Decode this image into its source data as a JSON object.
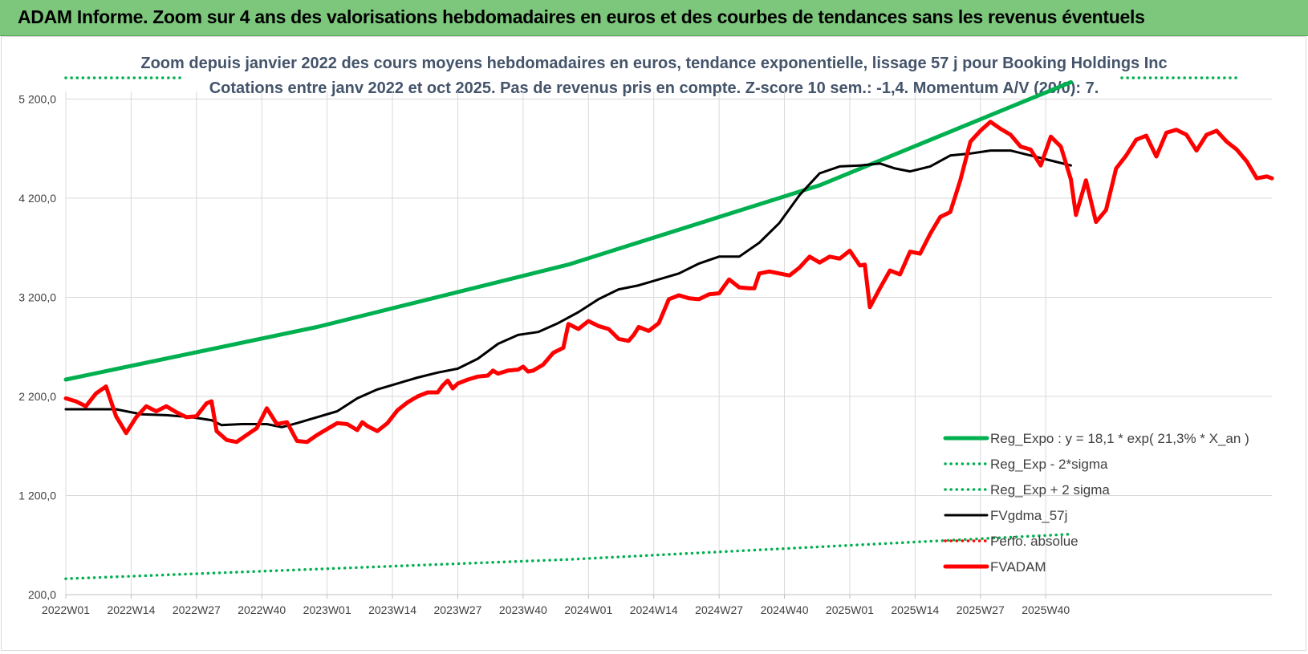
{
  "header": {
    "title": "ADAM Informe. Zoom sur 4 ans des valorisations hebdomadaires en euros et des courbes de tendances sans les revenus éventuels"
  },
  "colors": {
    "banner": "#7dc77d",
    "reg_expo": "#00b050",
    "fvgdma": "#000000",
    "fvadam": "#ff0000",
    "perfo": "#ff0000"
  },
  "chart_data": {
    "type": "line",
    "title_line1": "Zoom depuis janvier 2022 des cours moyens hebdomadaires en euros, tendance exponentielle, lissage 57 j pour Booking Holdings Inc",
    "title_line2": "Cotations entre janv 2022 et oct 2025. Pas de revenus pris en compte. Z-score 10 sem.: -1,4.  Momentum A/V (20/0): 7.",
    "ylim": [
      200,
      5600
    ],
    "y_ticks": [
      200,
      1200,
      2200,
      3200,
      4200,
      5200
    ],
    "y_tick_labels": [
      "200,0",
      "1 200,0",
      "2 200,0",
      "3 200,0",
      "4 200,0",
      "5 200,0"
    ],
    "x_tick_labels": [
      "2022W01",
      "2022W14",
      "2022W27",
      "2022W40",
      "2023W01",
      "2023W14",
      "2023W27",
      "2023W40",
      "2024W01",
      "2024W14",
      "2024W27",
      "2024W40",
      "2025W01",
      "2025W14",
      "2025W27",
      "2025W40"
    ],
    "x_tick_index": [
      0,
      13,
      26,
      39,
      52,
      65,
      78,
      91,
      104,
      117,
      130,
      143,
      156,
      169,
      182,
      195
    ],
    "grid": true,
    "legend_position": "bottom-right",
    "series": [
      {
        "name": "Reg_Expo : y = 18,1 * exp( 21,3% *  X_an )",
        "style": "solid-thick",
        "color": "#00b050",
        "points": [
          [
            0,
            2370
          ],
          [
            50,
            2900
          ],
          [
            100,
            3530
          ],
          [
            150,
            4330
          ],
          [
            200,
            5370
          ]
        ]
      },
      {
        "name": "Reg_Exp - 2*sigma",
        "style": "dotted",
        "color": "#00b050",
        "points": [
          [
            0,
            360
          ],
          [
            100,
            555
          ],
          [
            200,
            810
          ]
        ]
      },
      {
        "name": "Reg_Exp + 2 sigma",
        "style": "dotted",
        "color": "#00b050",
        "points": [
          [
            0,
            5780
          ],
          [
            18,
            5780
          ]
        ]
      },
      {
        "name": "FVgdma_57j",
        "style": "solid",
        "color": "#000000",
        "points": [
          [
            0,
            2070
          ],
          [
            5,
            2070
          ],
          [
            10,
            2070
          ],
          [
            15,
            2020
          ],
          [
            20,
            2010
          ],
          [
            25,
            1990
          ],
          [
            29,
            1960
          ],
          [
            31,
            1910
          ],
          [
            35,
            1920
          ],
          [
            40,
            1920
          ],
          [
            43,
            1890
          ],
          [
            46,
            1930
          ],
          [
            50,
            1990
          ],
          [
            54,
            2050
          ],
          [
            58,
            2180
          ],
          [
            62,
            2270
          ],
          [
            66,
            2330
          ],
          [
            70,
            2390
          ],
          [
            74,
            2440
          ],
          [
            78,
            2480
          ],
          [
            82,
            2580
          ],
          [
            86,
            2730
          ],
          [
            90,
            2820
          ],
          [
            94,
            2850
          ],
          [
            98,
            2940
          ],
          [
            102,
            3050
          ],
          [
            106,
            3180
          ],
          [
            110,
            3280
          ],
          [
            114,
            3320
          ],
          [
            118,
            3380
          ],
          [
            122,
            3440
          ],
          [
            126,
            3540
          ],
          [
            130,
            3610
          ],
          [
            134,
            3610
          ],
          [
            138,
            3750
          ],
          [
            142,
            3950
          ],
          [
            146,
            4230
          ],
          [
            150,
            4450
          ],
          [
            154,
            4520
          ],
          [
            158,
            4530
          ],
          [
            162,
            4550
          ],
          [
            165,
            4500
          ],
          [
            168,
            4470
          ],
          [
            172,
            4520
          ],
          [
            176,
            4630
          ],
          [
            180,
            4650
          ],
          [
            184,
            4680
          ],
          [
            188,
            4680
          ],
          [
            192,
            4630
          ],
          [
            196,
            4580
          ],
          [
            200,
            4530
          ]
        ]
      },
      {
        "name": "Perfo. absolue",
        "style": "dotted",
        "color": "#ff0000",
        "points": []
      },
      {
        "name": "FVADAM",
        "style": "solid-thick",
        "color": "#ff0000",
        "points": [
          [
            0,
            2180
          ],
          [
            2,
            2150
          ],
          [
            4,
            2100
          ],
          [
            6,
            2230
          ],
          [
            8,
            2300
          ],
          [
            10,
            2000
          ],
          [
            12,
            1830
          ],
          [
            14,
            1990
          ],
          [
            16,
            2100
          ],
          [
            18,
            2050
          ],
          [
            20,
            2100
          ],
          [
            22,
            2040
          ],
          [
            24,
            1990
          ],
          [
            26,
            2000
          ],
          [
            28,
            2130
          ],
          [
            29,
            2150
          ],
          [
            30,
            1850
          ],
          [
            32,
            1760
          ],
          [
            34,
            1740
          ],
          [
            36,
            1810
          ],
          [
            38,
            1880
          ],
          [
            40,
            2080
          ],
          [
            42,
            1920
          ],
          [
            44,
            1940
          ],
          [
            46,
            1750
          ],
          [
            48,
            1740
          ],
          [
            50,
            1810
          ],
          [
            52,
            1870
          ],
          [
            54,
            1930
          ],
          [
            56,
            1920
          ],
          [
            58,
            1860
          ],
          [
            59,
            1940
          ],
          [
            60,
            1900
          ],
          [
            62,
            1850
          ],
          [
            64,
            1930
          ],
          [
            66,
            2060
          ],
          [
            68,
            2140
          ],
          [
            70,
            2200
          ],
          [
            72,
            2240
          ],
          [
            74,
            2240
          ],
          [
            75,
            2310
          ],
          [
            76,
            2360
          ],
          [
            77,
            2280
          ],
          [
            78,
            2330
          ],
          [
            80,
            2370
          ],
          [
            82,
            2400
          ],
          [
            84,
            2410
          ],
          [
            85,
            2460
          ],
          [
            86,
            2430
          ],
          [
            88,
            2460
          ],
          [
            90,
            2470
          ],
          [
            91,
            2500
          ],
          [
            92,
            2450
          ],
          [
            93,
            2460
          ],
          [
            95,
            2520
          ],
          [
            97,
            2640
          ],
          [
            99,
            2690
          ],
          [
            100,
            2930
          ],
          [
            102,
            2880
          ],
          [
            104,
            2960
          ],
          [
            106,
            2910
          ],
          [
            108,
            2880
          ],
          [
            110,
            2780
          ],
          [
            112,
            2760
          ],
          [
            113,
            2820
          ],
          [
            114,
            2900
          ],
          [
            116,
            2860
          ],
          [
            118,
            2940
          ],
          [
            120,
            3180
          ],
          [
            122,
            3220
          ],
          [
            124,
            3190
          ],
          [
            126,
            3180
          ],
          [
            128,
            3230
          ],
          [
            130,
            3240
          ],
          [
            132,
            3380
          ],
          [
            134,
            3300
          ],
          [
            136,
            3290
          ],
          [
            137,
            3290
          ],
          [
            138,
            3440
          ],
          [
            140,
            3460
          ],
          [
            142,
            3440
          ],
          [
            144,
            3420
          ],
          [
            146,
            3500
          ],
          [
            148,
            3610
          ],
          [
            150,
            3550
          ],
          [
            152,
            3610
          ],
          [
            154,
            3590
          ],
          [
            156,
            3670
          ],
          [
            158,
            3520
          ],
          [
            159,
            3530
          ],
          [
            160,
            3100
          ],
          [
            162,
            3290
          ],
          [
            164,
            3470
          ],
          [
            166,
            3430
          ],
          [
            168,
            3660
          ],
          [
            170,
            3640
          ],
          [
            172,
            3840
          ],
          [
            174,
            4010
          ],
          [
            176,
            4060
          ],
          [
            178,
            4380
          ],
          [
            180,
            4770
          ],
          [
            182,
            4880
          ],
          [
            184,
            4970
          ],
          [
            186,
            4900
          ],
          [
            188,
            4840
          ],
          [
            190,
            4720
          ],
          [
            192,
            4690
          ],
          [
            194,
            4530
          ],
          [
            196,
            4820
          ],
          [
            198,
            4720
          ],
          [
            200,
            4390
          ],
          [
            201,
            4030
          ],
          [
            203,
            4380
          ],
          [
            205,
            3960
          ],
          [
            207,
            4080
          ],
          [
            209,
            4500
          ],
          [
            211,
            4630
          ],
          [
            213,
            4790
          ],
          [
            215,
            4830
          ],
          [
            217,
            4620
          ],
          [
            219,
            4860
          ],
          [
            221,
            4890
          ],
          [
            223,
            4840
          ],
          [
            225,
            4680
          ],
          [
            227,
            4840
          ],
          [
            229,
            4880
          ],
          [
            231,
            4770
          ],
          [
            233,
            4690
          ],
          [
            235,
            4570
          ],
          [
            237,
            4400
          ],
          [
            239,
            4420
          ],
          [
            240,
            4400
          ]
        ]
      }
    ]
  }
}
